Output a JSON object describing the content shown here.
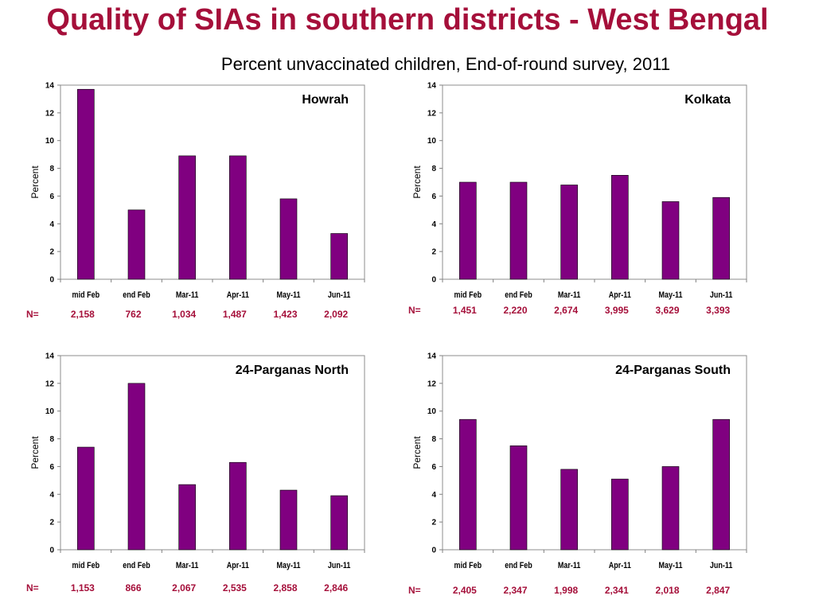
{
  "page": {
    "title": "Quality of SIAs in southern districts - West Bengal",
    "subtitle": "Percent unvaccinated children, End-of-round survey, 2011"
  },
  "colors": {
    "bar": "#800080",
    "title": "#a50f3a",
    "n_values": "#a50f3a"
  },
  "chart_data": [
    {
      "type": "bar",
      "title": "Howrah",
      "categories": [
        "mid Feb",
        "end Feb",
        "Mar-11",
        "Apr-11",
        "May-11",
        "Jun-11"
      ],
      "values": [
        13.7,
        5.0,
        8.9,
        8.9,
        5.8,
        3.3
      ],
      "ylabel": "Percent",
      "ylim": [
        0,
        14
      ],
      "yticks": [
        0,
        2,
        4,
        6,
        8,
        10,
        12,
        14
      ],
      "n_label": "N=",
      "n_values": [
        "2,158",
        "762",
        "1,034",
        "1,487",
        "1,423",
        "2,092"
      ]
    },
    {
      "type": "bar",
      "title": "Kolkata",
      "categories": [
        "mid Feb",
        "end Feb",
        "Mar-11",
        "Apr-11",
        "May-11",
        "Jun-11"
      ],
      "values": [
        7.0,
        7.0,
        6.8,
        7.5,
        5.6,
        5.9
      ],
      "ylabel": "Percent",
      "ylim": [
        0,
        14
      ],
      "yticks": [
        0,
        2,
        4,
        6,
        8,
        10,
        12,
        14
      ],
      "n_label": "N=",
      "n_values": [
        "1,451",
        "2,220",
        "2,674",
        "3,995",
        "3,629",
        "3,393"
      ]
    },
    {
      "type": "bar",
      "title": "24-Parganas North",
      "categories": [
        "mid Feb",
        "end Feb",
        "Mar-11",
        "Apr-11",
        "May-11",
        "Jun-11"
      ],
      "values": [
        7.4,
        12.0,
        4.7,
        6.3,
        4.3,
        3.9
      ],
      "ylabel": "Percent",
      "ylim": [
        0,
        14
      ],
      "yticks": [
        0,
        2,
        4,
        6,
        8,
        10,
        12,
        14
      ],
      "n_label": "N=",
      "n_values": [
        "1,153",
        "866",
        "2,067",
        "2,535",
        "2,858",
        "2,846"
      ]
    },
    {
      "type": "bar",
      "title": "24-Parganas South",
      "categories": [
        "mid Feb",
        "end Feb",
        "Mar-11",
        "Apr-11",
        "May-11",
        "Jun-11"
      ],
      "values": [
        9.4,
        7.5,
        5.8,
        5.1,
        6.0,
        9.4
      ],
      "ylabel": "Percent",
      "ylim": [
        0,
        14
      ],
      "yticks": [
        0,
        2,
        4,
        6,
        8,
        10,
        12,
        14
      ],
      "n_label": "N=",
      "n_values": [
        "2,405",
        "2,347",
        "1,998",
        "2,341",
        "2,018",
        "2,847"
      ]
    }
  ]
}
